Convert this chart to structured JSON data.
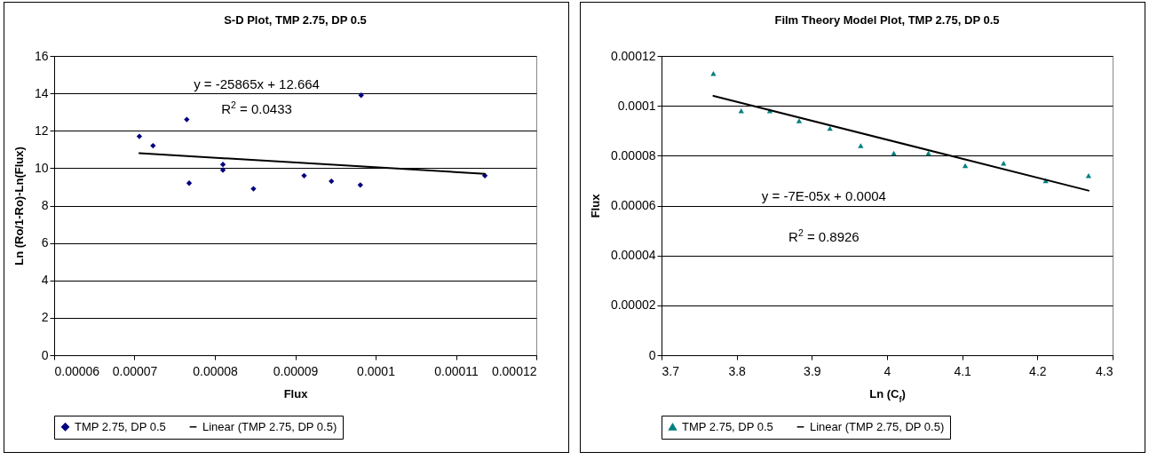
{
  "chart_data": [
    {
      "type": "scatter",
      "title": "S-D Plot, TMP 2.75, DP 0.5",
      "xlabel": "Flux",
      "ylabel": "Ln (Ro/1-Ro)-Ln(Flux)",
      "xlim": [
        6e-05,
        0.00012
      ],
      "xticks": [
        {
          "value": 6e-05,
          "label": "0.00006"
        },
        {
          "value": 7e-05,
          "label": "0.00007"
        },
        {
          "value": 8e-05,
          "label": "0.00008"
        },
        {
          "value": 9e-05,
          "label": "0.00009"
        },
        0.0001,
        0.00011,
        0.00012
      ],
      "ylim": [
        0,
        16
      ],
      "yticks": [
        0,
        2,
        4,
        6,
        8,
        10,
        12,
        14,
        16
      ],
      "grid": "y",
      "legend": "bottom",
      "series": [
        {
          "name": "TMP 2.75, DP 0.5",
          "color": "#000080",
          "marker": "diamond",
          "x": [
            7.06e-05,
            7.23e-05,
            7.65e-05,
            7.68e-05,
            8.1e-05,
            8.1e-05,
            8.48e-05,
            9.11e-05,
            9.45e-05,
            9.82e-05,
            9.81e-05,
            0.0001136
          ],
          "values": [
            11.7,
            11.2,
            12.6,
            9.2,
            10.2,
            9.9,
            8.9,
            9.6,
            9.3,
            13.9,
            9.1,
            9.6
          ]
        },
        {
          "type": "line",
          "name": "Linear (TMP 2.75, DP 0.5)",
          "color": "#000000",
          "marker": "none",
          "x": [
            7.06e-05,
            0.0001136
          ],
          "values": [
            10.8,
            9.7
          ]
        }
      ],
      "annotations": [
        "y = -25865x + 12.664",
        "R$^{2}$ = 0.0433"
      ]
    },
    {
      "type": "scatter",
      "title": "Film Theory Model Plot, TMP 2.75, DP 0.5",
      "xlabel": "Ln (C$_{f}$)",
      "ylabel": "Flux",
      "xlim": [
        3.7,
        4.3
      ],
      "xticks": [
        3.7,
        3.8,
        3.9,
        4,
        4.1,
        4.2,
        4.3
      ],
      "ylim": [
        0,
        0.00012
      ],
      "yticks": [
        0,
        {
          "value": 2e-05,
          "label": "0.00002"
        },
        {
          "value": 4e-05,
          "label": "0.00004"
        },
        {
          "value": 6e-05,
          "label": "0.00006"
        },
        {
          "value": 8e-05,
          "label": "0.00008"
        },
        0.0001,
        0.00012
      ],
      "grid": "y",
      "legend": "bottom",
      "series": [
        {
          "name": "TMP 2.75, DP 0.5",
          "color": "#008080",
          "marker": "triangle",
          "x": [
            3.769,
            3.806,
            3.844,
            3.883,
            3.924,
            3.965,
            4.009,
            4.055,
            4.104,
            4.155,
            4.211,
            4.268
          ],
          "values": [
            0.000113,
            9.8e-05,
            9.8e-05,
            9.4e-05,
            9.1e-05,
            8.4e-05,
            8.1e-05,
            8.1e-05,
            7.6e-05,
            7.7e-05,
            7e-05,
            7.2e-05
          ]
        },
        {
          "type": "line",
          "name": "Linear (TMP 2.75, DP 0.5)",
          "color": "#000000",
          "marker": "none",
          "x": [
            3.769,
            4.268
          ],
          "values": [
            0.000104,
            6.6e-05
          ]
        }
      ],
      "annotations": [
        "y = -7E-05x + 0.0004",
        "R$^{2}$ = 0.8926"
      ]
    }
  ]
}
